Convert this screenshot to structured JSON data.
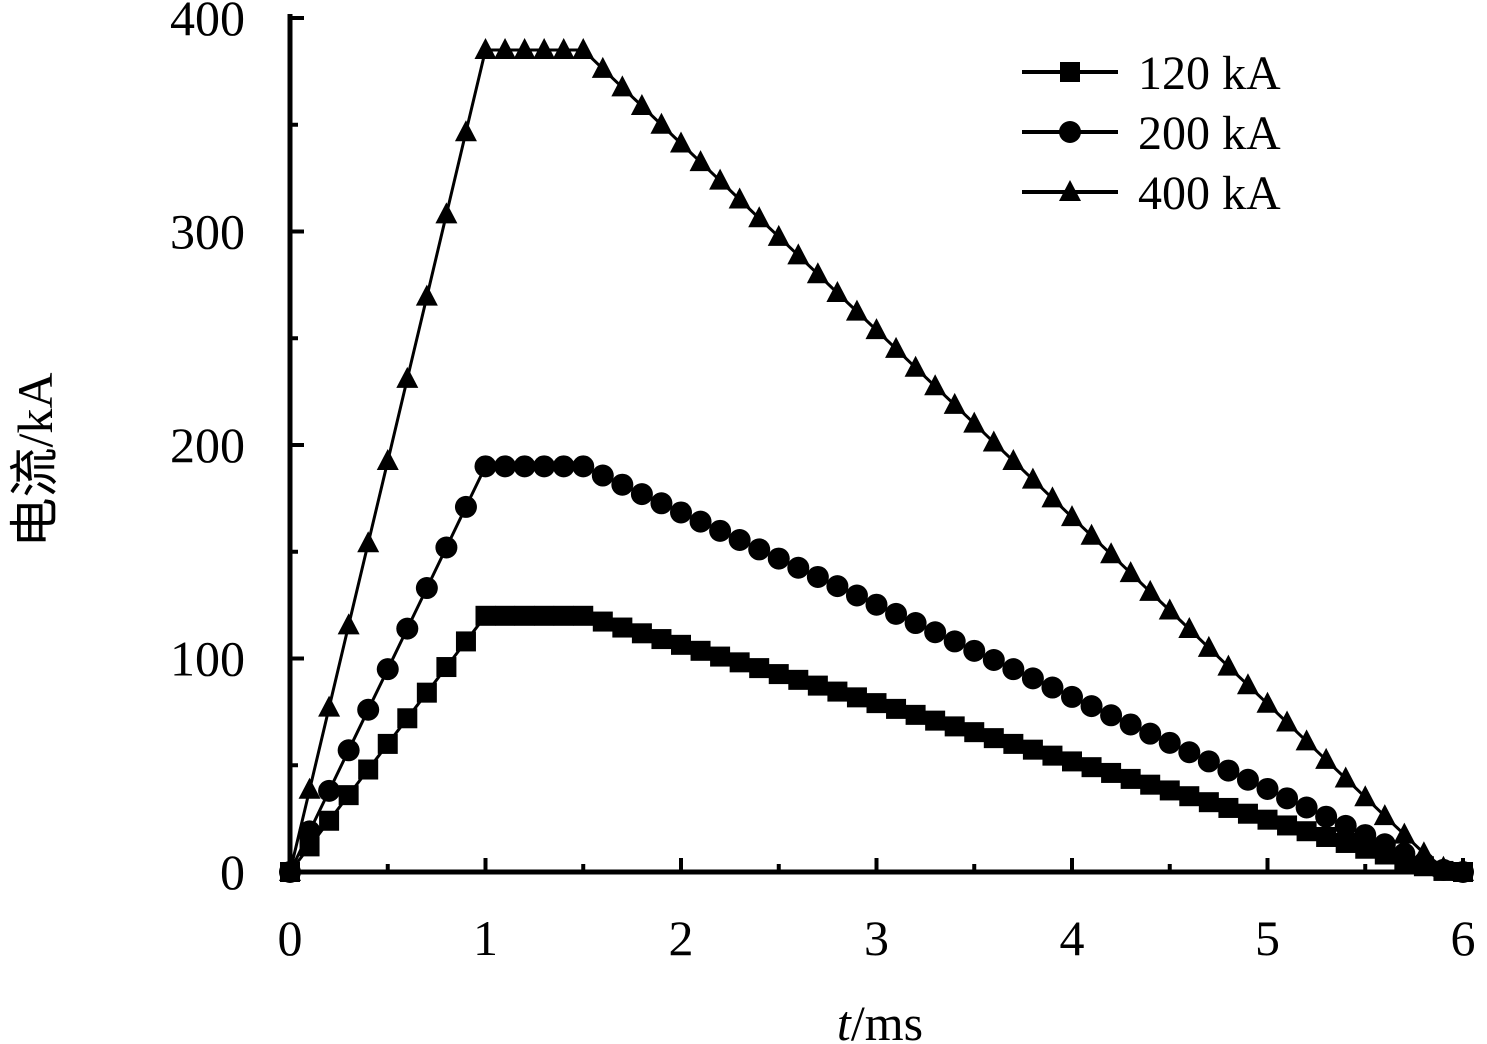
{
  "chart_data": {
    "type": "line",
    "xlabel_italic": "t",
    "xlabel_rest": "/ms",
    "ylabel": "电流/kA",
    "xlim": [
      0,
      6
    ],
    "ylim": [
      0,
      400
    ],
    "xticks": [
      "0",
      "1",
      "2",
      "3",
      "4",
      "5",
      "6"
    ],
    "yticks": [
      "0",
      "100",
      "200",
      "300",
      "400"
    ],
    "grid": false,
    "legend_position": "top-right",
    "series": [
      {
        "name": "120 kA",
        "marker": "square",
        "rise_end": 1.0,
        "plateau_end": 1.5,
        "peak": 120,
        "x": [
          0,
          0.1,
          0.2,
          0.3,
          0.4,
          0.5,
          0.6,
          0.7,
          0.8,
          0.9,
          1.0,
          1.1,
          1.2,
          1.3,
          1.4,
          1.5,
          1.6,
          1.7,
          1.8,
          1.9,
          2.0,
          2.1,
          2.2,
          2.3,
          2.4,
          2.5,
          2.6,
          2.7,
          2.8,
          2.9,
          3.0,
          3.1,
          3.2,
          3.3,
          3.4,
          3.5,
          3.6,
          3.7,
          3.8,
          3.9,
          4.0,
          4.1,
          4.2,
          4.3,
          4.4,
          4.5,
          4.6,
          4.7,
          4.8,
          4.9,
          5.0,
          5.1,
          5.2,
          5.3,
          5.4,
          5.5,
          5.6,
          5.7,
          5.8,
          5.9,
          6.0
        ],
        "y": [
          0,
          12,
          24,
          36,
          48,
          60,
          72,
          84,
          96,
          108,
          120,
          120,
          120,
          120,
          120,
          120,
          117.3,
          114.5,
          111.8,
          109.1,
          106.4,
          103.6,
          100.9,
          98.2,
          95.5,
          92.7,
          90.0,
          87.3,
          84.5,
          81.8,
          79.1,
          76.4,
          73.6,
          70.9,
          68.2,
          65.5,
          62.7,
          60.0,
          57.3,
          54.5,
          51.8,
          49.1,
          46.4,
          43.6,
          40.9,
          38.2,
          35.5,
          32.7,
          30.0,
          27.3,
          24.5,
          21.8,
          19.1,
          16.4,
          13.6,
          10.9,
          8.2,
          5.5,
          2.7,
          0.5,
          0
        ]
      },
      {
        "name": "200 kA",
        "marker": "circle",
        "rise_end": 1.0,
        "plateau_end": 1.5,
        "peak": 190,
        "x": [
          0,
          0.1,
          0.2,
          0.3,
          0.4,
          0.5,
          0.6,
          0.7,
          0.8,
          0.9,
          1.0,
          1.1,
          1.2,
          1.3,
          1.4,
          1.5,
          1.6,
          1.7,
          1.8,
          1.9,
          2.0,
          2.1,
          2.2,
          2.3,
          2.4,
          2.5,
          2.6,
          2.7,
          2.8,
          2.9,
          3.0,
          3.1,
          3.2,
          3.3,
          3.4,
          3.5,
          3.6,
          3.7,
          3.8,
          3.9,
          4.0,
          4.1,
          4.2,
          4.3,
          4.4,
          4.5,
          4.6,
          4.7,
          4.8,
          4.9,
          5.0,
          5.1,
          5.2,
          5.3,
          5.4,
          5.5,
          5.6,
          5.7,
          5.8,
          5.9,
          6.0
        ],
        "y": [
          0,
          19,
          38,
          57,
          76,
          95,
          114,
          133,
          152,
          171,
          190,
          190,
          190,
          190,
          190,
          190,
          185.7,
          181.4,
          177.0,
          172.7,
          168.4,
          164.1,
          159.8,
          155.5,
          151.1,
          146.8,
          142.5,
          138.2,
          133.9,
          129.5,
          125.2,
          120.9,
          116.6,
          112.3,
          108.0,
          103.6,
          99.3,
          95.0,
          90.7,
          86.4,
          82.0,
          77.7,
          73.4,
          69.1,
          64.8,
          60.5,
          56.1,
          51.8,
          47.5,
          43.2,
          38.9,
          34.5,
          30.2,
          25.9,
          21.6,
          17.3,
          13.0,
          8.6,
          4.3,
          1.0,
          0
        ]
      },
      {
        "name": "400 kA",
        "marker": "triangle",
        "rise_end": 1.0,
        "plateau_end": 1.5,
        "peak": 385,
        "x": [
          0,
          0.1,
          0.2,
          0.3,
          0.4,
          0.5,
          0.6,
          0.7,
          0.8,
          0.9,
          1.0,
          1.1,
          1.2,
          1.3,
          1.4,
          1.5,
          1.6,
          1.7,
          1.8,
          1.9,
          2.0,
          2.1,
          2.2,
          2.3,
          2.4,
          2.5,
          2.6,
          2.7,
          2.8,
          2.9,
          3.0,
          3.1,
          3.2,
          3.3,
          3.4,
          3.5,
          3.6,
          3.7,
          3.8,
          3.9,
          4.0,
          4.1,
          4.2,
          4.3,
          4.4,
          4.5,
          4.6,
          4.7,
          4.8,
          4.9,
          5.0,
          5.1,
          5.2,
          5.3,
          5.4,
          5.5,
          5.6,
          5.7,
          5.8,
          5.9,
          6.0
        ],
        "y": [
          0,
          38.5,
          77,
          115.5,
          154,
          192.5,
          231,
          269.5,
          308,
          346.5,
          385,
          385,
          385,
          385,
          385,
          385,
          376.2,
          367.5,
          358.8,
          350.0,
          341.2,
          332.5,
          323.8,
          315.0,
          306.2,
          297.5,
          288.8,
          280.0,
          271.2,
          262.5,
          253.8,
          245.0,
          236.2,
          227.5,
          218.8,
          210.0,
          201.2,
          192.5,
          183.8,
          175.0,
          166.2,
          157.5,
          148.8,
          140.0,
          131.2,
          122.5,
          113.8,
          105.0,
          96.2,
          87.5,
          78.8,
          70.0,
          61.2,
          52.5,
          43.8,
          35.0,
          26.2,
          17.5,
          8.8,
          2.0,
          0
        ]
      }
    ]
  }
}
